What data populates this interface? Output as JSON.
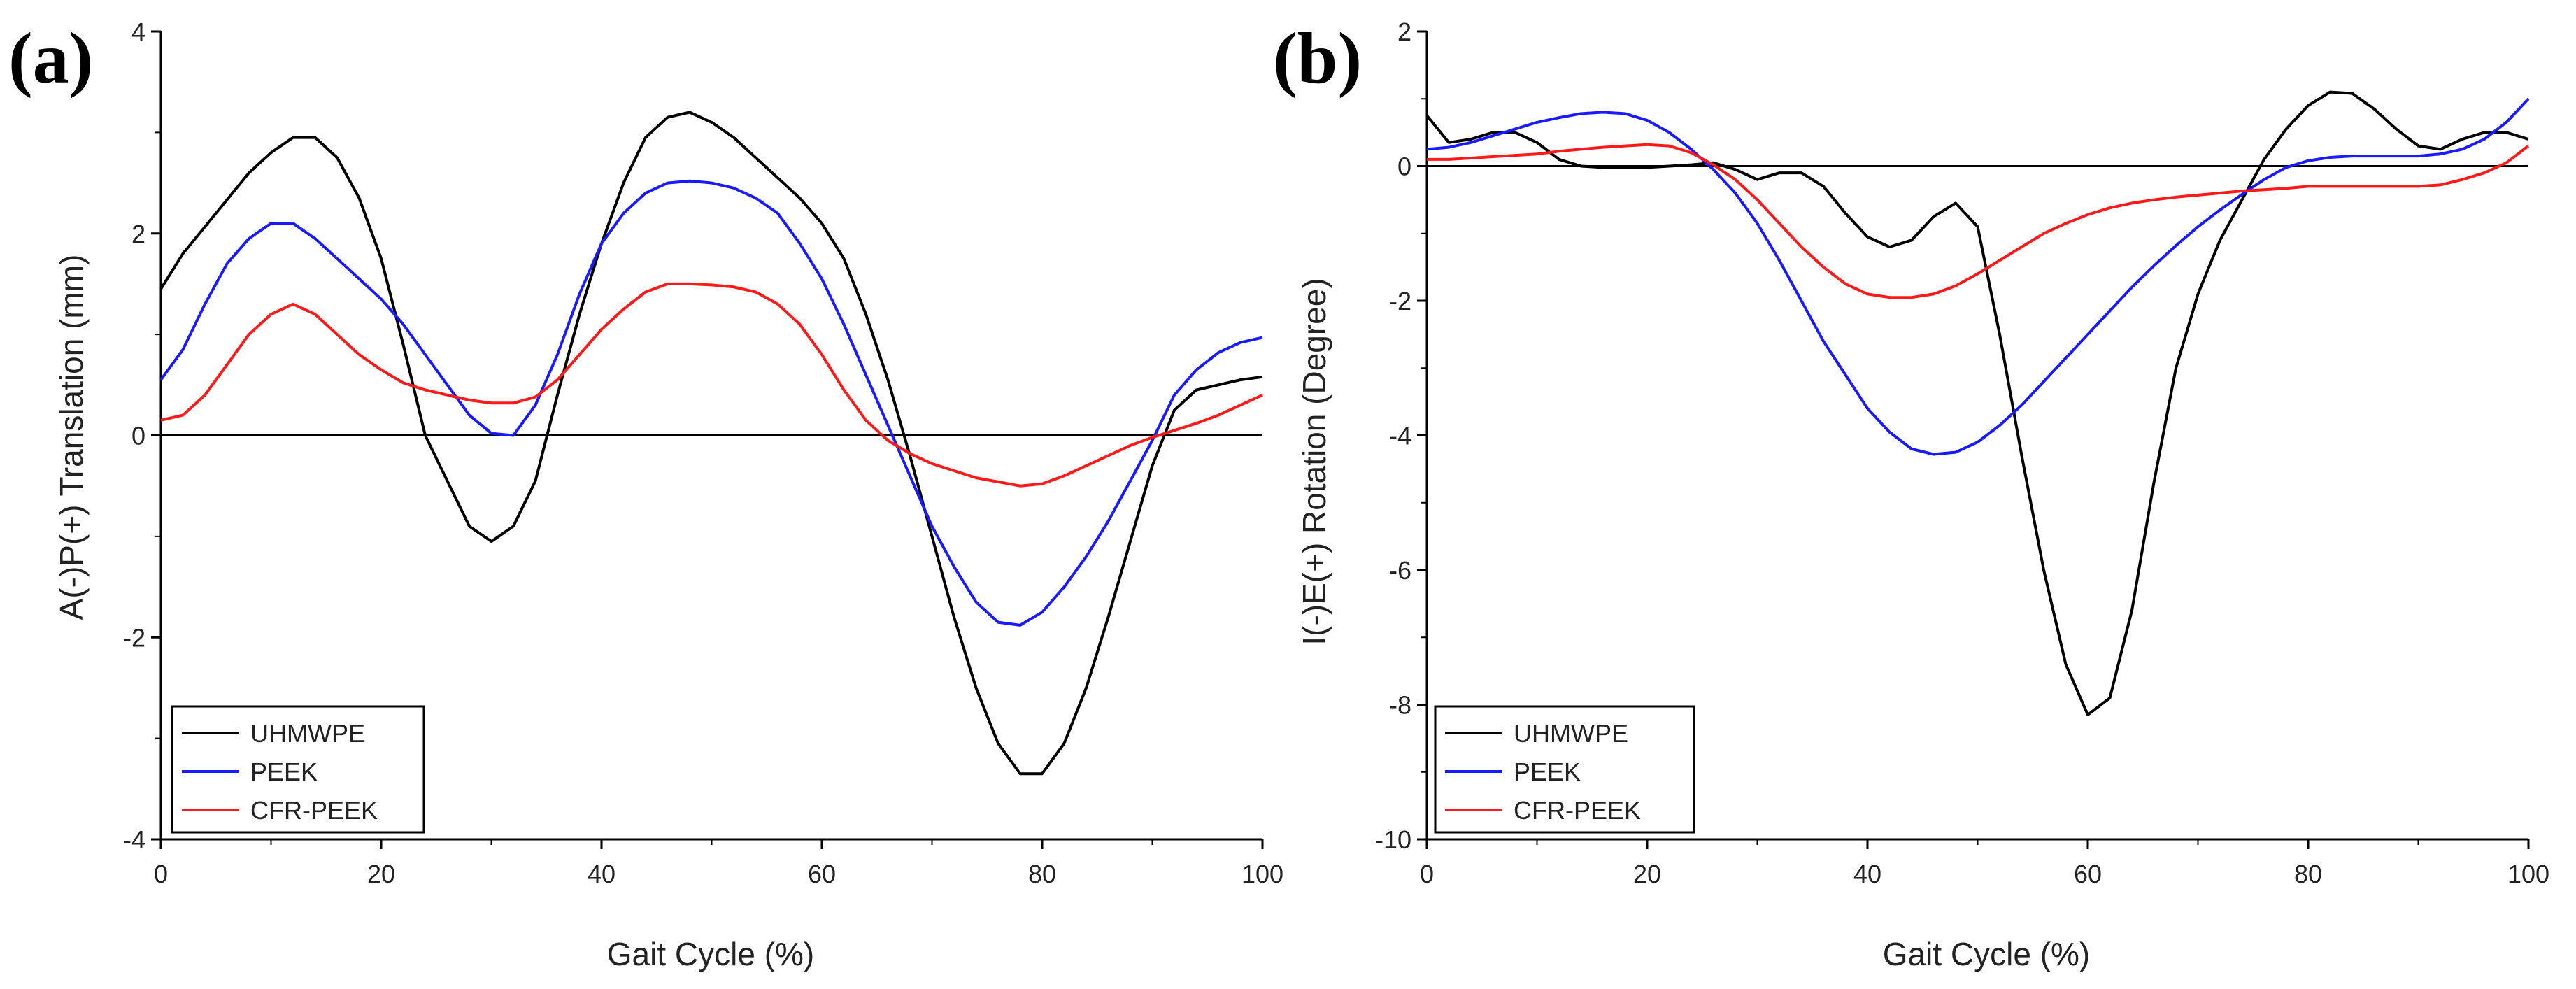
{
  "chart_data": [
    {
      "type": "line",
      "panel_label": "(a)",
      "xlabel": "Gait Cycle (%)",
      "ylabel": "A(-)P(+) Translation (mm)",
      "xlim": [
        0,
        100
      ],
      "ylim": [
        -4,
        4
      ],
      "xticks": [
        0,
        20,
        40,
        60,
        80,
        100
      ],
      "yticks": [
        -4,
        -2,
        0,
        2,
        4
      ],
      "zero_line": true,
      "legend_position": "bottom-left",
      "series": [
        {
          "name": "UHMWPE",
          "color": "#000000",
          "x": [
            0,
            2,
            5,
            8,
            10,
            12,
            14,
            16,
            18,
            20,
            22,
            24,
            26,
            28,
            30,
            32,
            34,
            36,
            38,
            40,
            42,
            44,
            46,
            48,
            50,
            52,
            54,
            56,
            58,
            60,
            62,
            64,
            66,
            68,
            70,
            72,
            74,
            76,
            78,
            80,
            82,
            84,
            86,
            88,
            90,
            92,
            94,
            96,
            98,
            100
          ],
          "values": [
            1.45,
            1.8,
            2.2,
            2.6,
            2.8,
            2.95,
            2.95,
            2.75,
            2.35,
            1.75,
            0.9,
            0.0,
            -0.45,
            -0.9,
            -1.05,
            -0.9,
            -0.45,
            0.4,
            1.2,
            1.9,
            2.5,
            2.95,
            3.15,
            3.2,
            3.1,
            2.95,
            2.75,
            2.55,
            2.35,
            2.1,
            1.75,
            1.2,
            0.55,
            -0.2,
            -1.0,
            -1.8,
            -2.5,
            -3.05,
            -3.35,
            -3.35,
            -3.05,
            -2.5,
            -1.8,
            -1.05,
            -0.3,
            0.25,
            0.45,
            0.5,
            0.55,
            0.58
          ]
        },
        {
          "name": "PEEK",
          "color": "#1a1aff",
          "x": [
            0,
            2,
            4,
            6,
            8,
            10,
            12,
            14,
            16,
            18,
            20,
            22,
            24,
            26,
            28,
            30,
            32,
            34,
            36,
            38,
            40,
            42,
            44,
            46,
            48,
            50,
            52,
            54,
            56,
            58,
            60,
            62,
            64,
            66,
            68,
            70,
            72,
            74,
            76,
            78,
            80,
            82,
            84,
            86,
            88,
            90,
            92,
            94,
            96,
            98,
            100
          ],
          "values": [
            0.55,
            0.85,
            1.3,
            1.7,
            1.95,
            2.1,
            2.1,
            1.95,
            1.75,
            1.55,
            1.35,
            1.1,
            0.8,
            0.5,
            0.2,
            0.02,
            0.0,
            0.3,
            0.8,
            1.4,
            1.9,
            2.2,
            2.4,
            2.5,
            2.52,
            2.5,
            2.45,
            2.35,
            2.2,
            1.9,
            1.55,
            1.1,
            0.6,
            0.1,
            -0.4,
            -0.9,
            -1.3,
            -1.65,
            -1.85,
            -1.88,
            -1.75,
            -1.5,
            -1.2,
            -0.85,
            -0.45,
            -0.05,
            0.4,
            0.65,
            0.82,
            0.92,
            0.97
          ]
        },
        {
          "name": "CFR-PEEK",
          "color": "#ff1a1a",
          "x": [
            0,
            2,
            4,
            6,
            8,
            10,
            12,
            14,
            16,
            18,
            20,
            22,
            24,
            26,
            28,
            30,
            32,
            34,
            36,
            38,
            40,
            42,
            44,
            46,
            48,
            50,
            52,
            54,
            56,
            58,
            60,
            62,
            64,
            66,
            68,
            70,
            72,
            74,
            76,
            78,
            80,
            82,
            84,
            86,
            88,
            90,
            92,
            94,
            96,
            98,
            100
          ],
          "values": [
            0.15,
            0.2,
            0.4,
            0.7,
            1.0,
            1.2,
            1.3,
            1.2,
            1.0,
            0.8,
            0.65,
            0.52,
            0.45,
            0.4,
            0.35,
            0.32,
            0.32,
            0.38,
            0.55,
            0.8,
            1.05,
            1.25,
            1.42,
            1.5,
            1.5,
            1.49,
            1.47,
            1.42,
            1.3,
            1.1,
            0.8,
            0.45,
            0.15,
            -0.05,
            -0.18,
            -0.28,
            -0.35,
            -0.42,
            -0.46,
            -0.5,
            -0.48,
            -0.4,
            -0.3,
            -0.2,
            -0.1,
            -0.02,
            0.05,
            0.12,
            0.2,
            0.3,
            0.4
          ]
        }
      ]
    },
    {
      "type": "line",
      "panel_label": "(b)",
      "xlabel": "Gait Cycle (%)",
      "ylabel": "I(-)E(+) Rotation (Degree)",
      "xlim": [
        0,
        100
      ],
      "ylim": [
        -10,
        2
      ],
      "xticks": [
        0,
        20,
        40,
        60,
        80,
        100
      ],
      "yticks": [
        -10,
        -8,
        -6,
        -4,
        -2,
        0,
        2
      ],
      "zero_line": true,
      "legend_position": "bottom-left",
      "series": [
        {
          "name": "UHMWPE",
          "color": "#000000",
          "x": [
            0,
            2,
            4,
            6,
            8,
            10,
            12,
            14,
            16,
            18,
            20,
            22,
            24,
            26,
            28,
            30,
            32,
            34,
            36,
            38,
            40,
            42,
            44,
            46,
            48,
            50,
            52,
            54,
            56,
            58,
            60,
            62,
            64,
            66,
            68,
            70,
            72,
            74,
            76,
            78,
            80,
            82,
            84,
            86,
            88,
            90,
            92,
            94,
            96,
            98,
            100
          ],
          "values": [
            0.75,
            0.35,
            0.4,
            0.5,
            0.5,
            0.35,
            0.1,
            0.0,
            -0.02,
            -0.02,
            -0.02,
            0.0,
            0.02,
            0.05,
            -0.05,
            -0.2,
            -0.1,
            -0.1,
            -0.3,
            -0.7,
            -1.05,
            -1.2,
            -1.1,
            -0.75,
            -0.55,
            -0.9,
            -2.5,
            -4.3,
            -6.0,
            -7.4,
            -8.15,
            -7.9,
            -6.6,
            -4.7,
            -3.0,
            -1.9,
            -1.1,
            -0.5,
            0.1,
            0.55,
            0.9,
            1.1,
            1.08,
            0.85,
            0.55,
            0.3,
            0.25,
            0.4,
            0.5,
            0.5,
            0.4
          ]
        },
        {
          "name": "PEEK",
          "color": "#1a1aff",
          "x": [
            0,
            2,
            4,
            6,
            8,
            10,
            12,
            14,
            16,
            18,
            20,
            22,
            24,
            26,
            28,
            30,
            32,
            34,
            36,
            38,
            40,
            42,
            44,
            46,
            48,
            50,
            52,
            54,
            56,
            58,
            60,
            62,
            64,
            66,
            68,
            70,
            72,
            74,
            76,
            78,
            80,
            82,
            84,
            86,
            88,
            90,
            92,
            94,
            96,
            98,
            100
          ],
          "values": [
            0.25,
            0.28,
            0.35,
            0.45,
            0.55,
            0.65,
            0.72,
            0.78,
            0.8,
            0.78,
            0.68,
            0.5,
            0.25,
            -0.05,
            -0.4,
            -0.85,
            -1.4,
            -2.0,
            -2.6,
            -3.1,
            -3.6,
            -3.95,
            -4.2,
            -4.28,
            -4.25,
            -4.1,
            -3.85,
            -3.55,
            -3.2,
            -2.85,
            -2.5,
            -2.15,
            -1.8,
            -1.48,
            -1.18,
            -0.9,
            -0.65,
            -0.42,
            -0.2,
            -0.02,
            0.08,
            0.13,
            0.15,
            0.15,
            0.15,
            0.15,
            0.18,
            0.25,
            0.4,
            0.65,
            1.0
          ]
        },
        {
          "name": "CFR-PEEK",
          "color": "#ff1a1a",
          "x": [
            0,
            2,
            4,
            6,
            8,
            10,
            12,
            14,
            16,
            18,
            20,
            22,
            24,
            26,
            28,
            30,
            32,
            34,
            36,
            38,
            40,
            42,
            44,
            46,
            48,
            50,
            52,
            54,
            56,
            58,
            60,
            62,
            64,
            66,
            68,
            70,
            72,
            74,
            76,
            78,
            80,
            82,
            84,
            86,
            88,
            90,
            92,
            94,
            96,
            98,
            100
          ],
          "values": [
            0.1,
            0.1,
            0.12,
            0.14,
            0.16,
            0.18,
            0.22,
            0.25,
            0.28,
            0.3,
            0.32,
            0.3,
            0.2,
            0.02,
            -0.2,
            -0.5,
            -0.85,
            -1.2,
            -1.5,
            -1.75,
            -1.9,
            -1.95,
            -1.95,
            -1.9,
            -1.78,
            -1.6,
            -1.4,
            -1.2,
            -1.0,
            -0.85,
            -0.72,
            -0.62,
            -0.55,
            -0.5,
            -0.46,
            -0.43,
            -0.4,
            -0.37,
            -0.35,
            -0.33,
            -0.3,
            -0.3,
            -0.3,
            -0.3,
            -0.3,
            -0.3,
            -0.28,
            -0.2,
            -0.1,
            0.05,
            0.3
          ]
        }
      ]
    }
  ]
}
